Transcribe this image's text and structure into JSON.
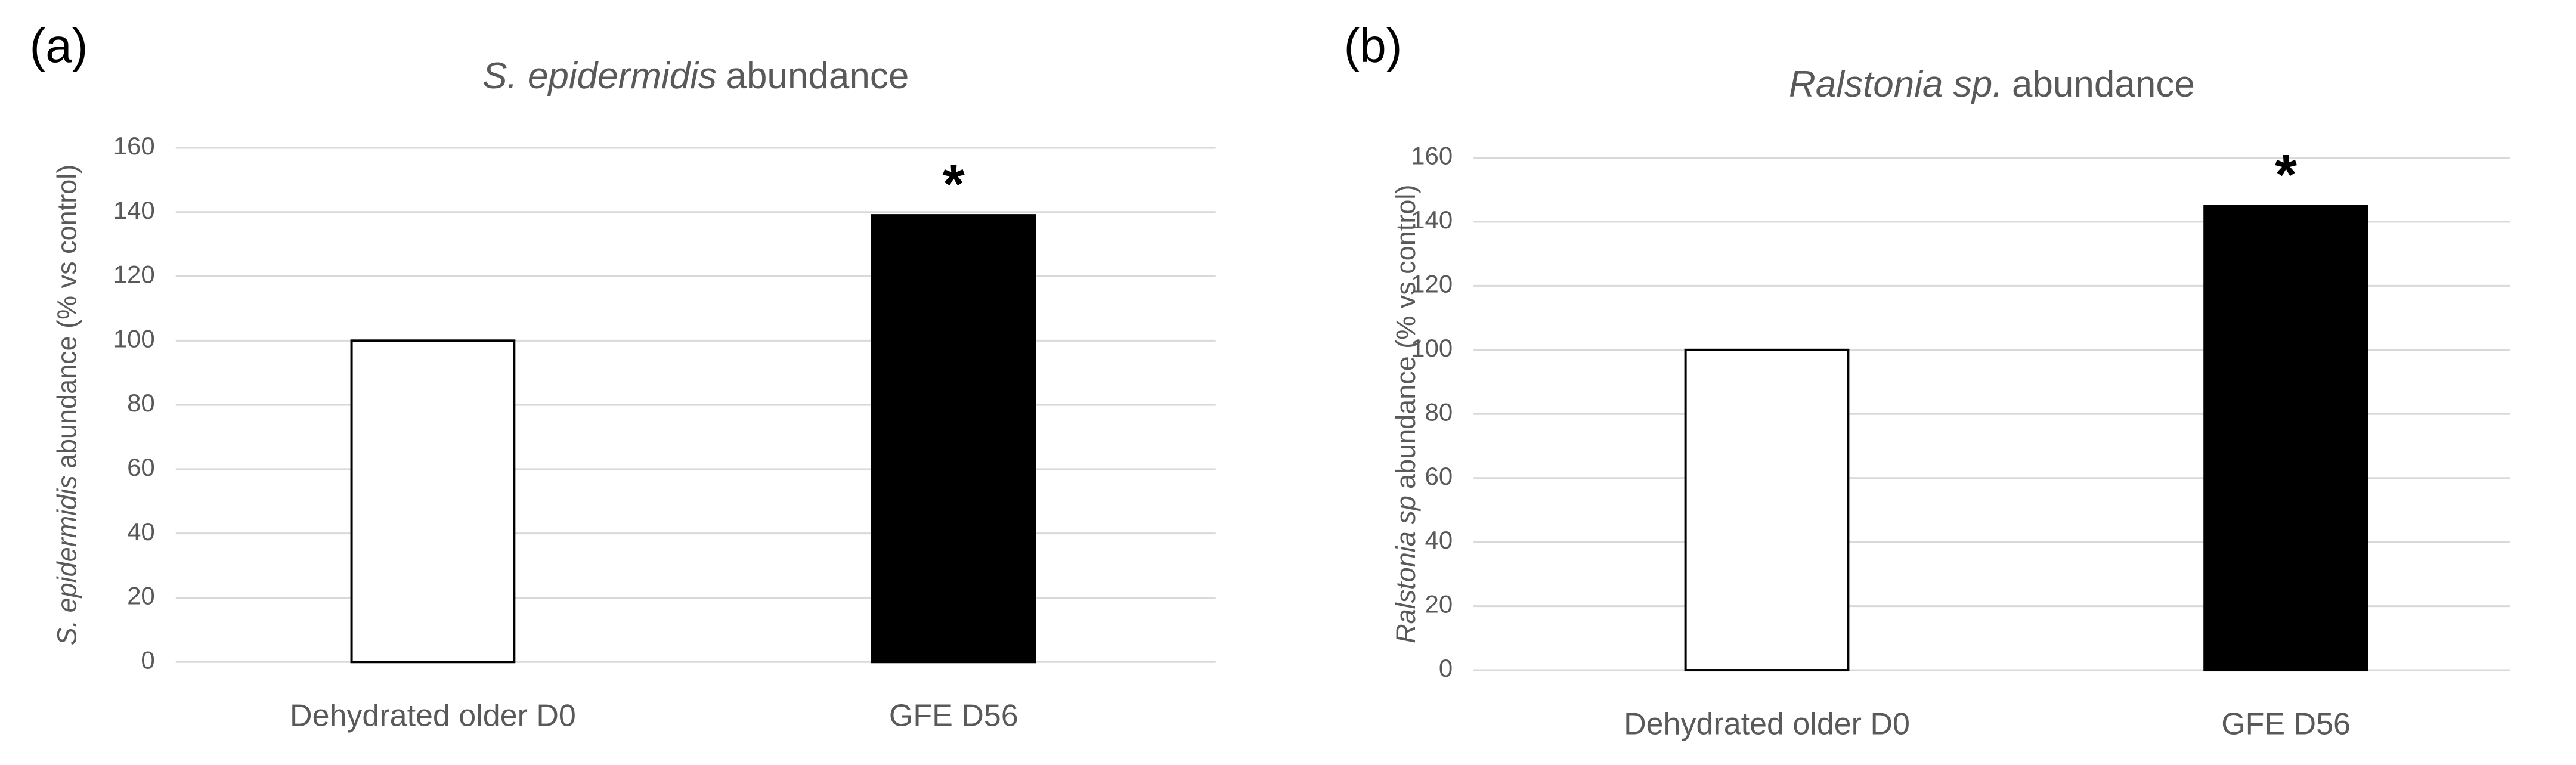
{
  "chart_data": [
    {
      "type": "bar",
      "panel_label": "(a)",
      "title": [
        "S. epidermidis",
        "abundance"
      ],
      "y_label": [
        "S. epidermidis",
        "abundance (% vs control)"
      ],
      "categories": [
        "Dehydrated older D0",
        "GFE D56"
      ],
      "values": [
        100,
        139
      ],
      "colors": [
        "#ffffff",
        "#000000"
      ],
      "edge_color": "#000000",
      "annotations": [
        {
          "text": "*",
          "category": "GFE D56"
        }
      ],
      "ylim": [
        0,
        160
      ],
      "yticks": [
        0,
        20,
        40,
        60,
        80,
        100,
        120,
        140,
        160
      ],
      "grid": true
    },
    {
      "type": "bar",
      "panel_label": "(b)",
      "title": [
        "Ralstonia sp.",
        "abundance"
      ],
      "y_label": [
        "Ralstonia sp",
        "abundance (% vs control)"
      ],
      "categories": [
        "Dehydrated older D0",
        "GFE D56"
      ],
      "values": [
        100,
        145
      ],
      "colors": [
        "#ffffff",
        "#000000"
      ],
      "edge_color": "#000000",
      "annotations": [
        {
          "text": "*",
          "category": "GFE D56"
        }
      ],
      "ylim": [
        0,
        160
      ],
      "yticks": [
        0,
        20,
        40,
        60,
        80,
        100,
        120,
        140,
        160
      ],
      "grid": true
    }
  ]
}
